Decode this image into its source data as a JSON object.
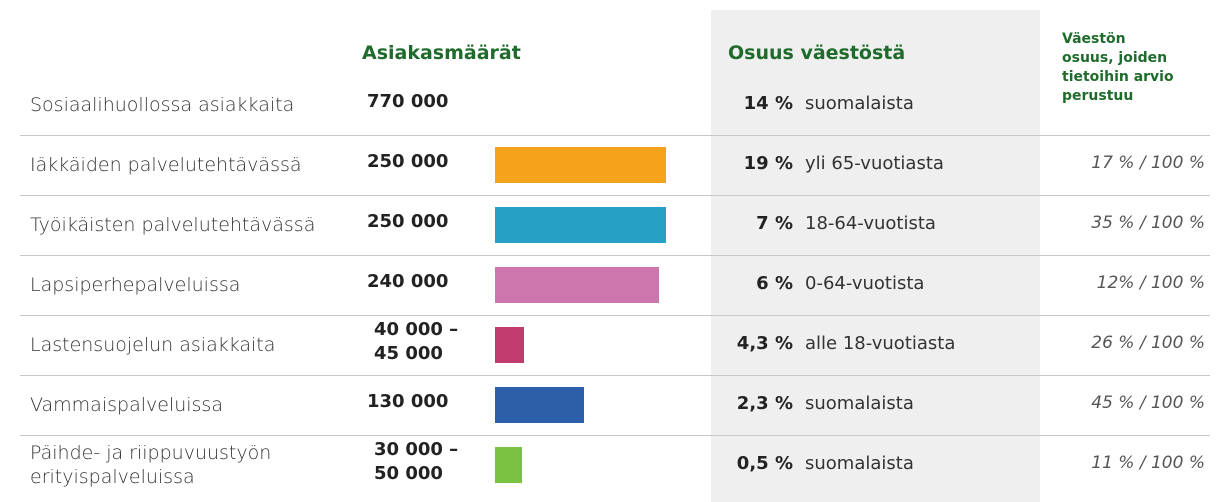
{
  "header": {
    "count": "Asiakasmäärät",
    "share": "Osuus väestöstä",
    "basis": [
      "Väestön",
      "osuus, joiden",
      "tietoihin arvio",
      "perustuu"
    ]
  },
  "rows": [
    {
      "label": [
        "Sosiaalihuollossa asiakkaita"
      ],
      "count": [
        "770 000"
      ],
      "share": "14 %",
      "share_text": "suomalaista"
    },
    {
      "label": [
        "Iäkkäiden palvelutehtävässä"
      ],
      "count": [
        "250 000"
      ],
      "bar": 250000,
      "color": "#f5a31a",
      "share": "19 %",
      "share_text": "yli 65-vuotiasta",
      "basis": "17 % / 100 %"
    },
    {
      "label": [
        "Työikäisten palvelutehtävässä"
      ],
      "count": [
        "250 000"
      ],
      "bar": 250000,
      "color": "#27a0c5",
      "share": "7 %",
      "share_text": "18-64-vuotista",
      "basis": "35 % / 100 %"
    },
    {
      "label": [
        "Lapsiperhepalveluissa"
      ],
      "count": [
        "240 000"
      ],
      "bar": 240000,
      "color": "#cc76ad",
      "share": "6 %",
      "share_text": "0-64-vuotista",
      "basis": "12% / 100 %"
    },
    {
      "label": [
        "Lastensuojelun asiakkaita"
      ],
      "count": [
        "40 000 –",
        "45 000"
      ],
      "bar": 42500,
      "color": "#c03b6e",
      "share": "4,3 %",
      "share_text": "alle 18-vuotiasta",
      "basis": "26 % / 100 %"
    },
    {
      "label": [
        "Vammaispalveluissa"
      ],
      "count": [
        "130 000"
      ],
      "bar": 130000,
      "color": "#2d5ea8",
      "share": "2,3 %",
      "share_text": "suomalaista",
      "basis": "45 % / 100 %"
    },
    {
      "label": [
        "Päihde- ja riippuvuustyön",
        "erityispalveluissa"
      ],
      "count": [
        "30 000 –",
        "50 000"
      ],
      "bar": 40000,
      "color": "#7cc242",
      "share": "0,5 %",
      "share_text": "suomalaista",
      "basis": "11 % / 100 %"
    }
  ]
}
